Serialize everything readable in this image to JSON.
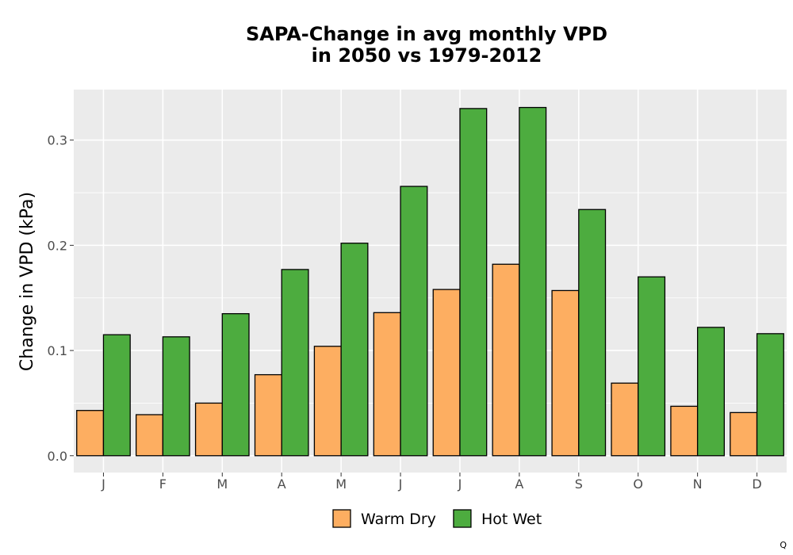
{
  "chart_data": {
    "type": "bar",
    "title_line1": "SAPA-Change in avg monthly VPD",
    "title_line2": "in 2050 vs 1979-2012",
    "xlabel": "",
    "ylabel": "Change in VPD (kPa)",
    "ylim": [
      -0.016,
      0.348
    ],
    "yticks": [
      0.0,
      0.1,
      0.2,
      0.3
    ],
    "ytick_labels": [
      "0.0",
      "0.1",
      "0.2",
      "0.3"
    ],
    "categories": [
      "J",
      "F",
      "M",
      "A",
      "M",
      "J",
      "J",
      "A",
      "S",
      "O",
      "N",
      "D"
    ],
    "series": [
      {
        "name": "Warm Dry",
        "color": "#FDAE61",
        "values": [
          0.043,
          0.039,
          0.05,
          0.077,
          0.104,
          0.136,
          0.158,
          0.182,
          0.157,
          0.069,
          0.047,
          0.041
        ]
      },
      {
        "name": "Hot Wet",
        "color": "#4DAC3F",
        "values": [
          0.115,
          0.113,
          0.135,
          0.177,
          0.202,
          0.256,
          0.33,
          0.331,
          0.234,
          0.17,
          0.122,
          0.116
        ]
      }
    ],
    "grid": true,
    "panel_background": "#EBEBEB",
    "legend_position": "bottom"
  },
  "footnote": "Q"
}
